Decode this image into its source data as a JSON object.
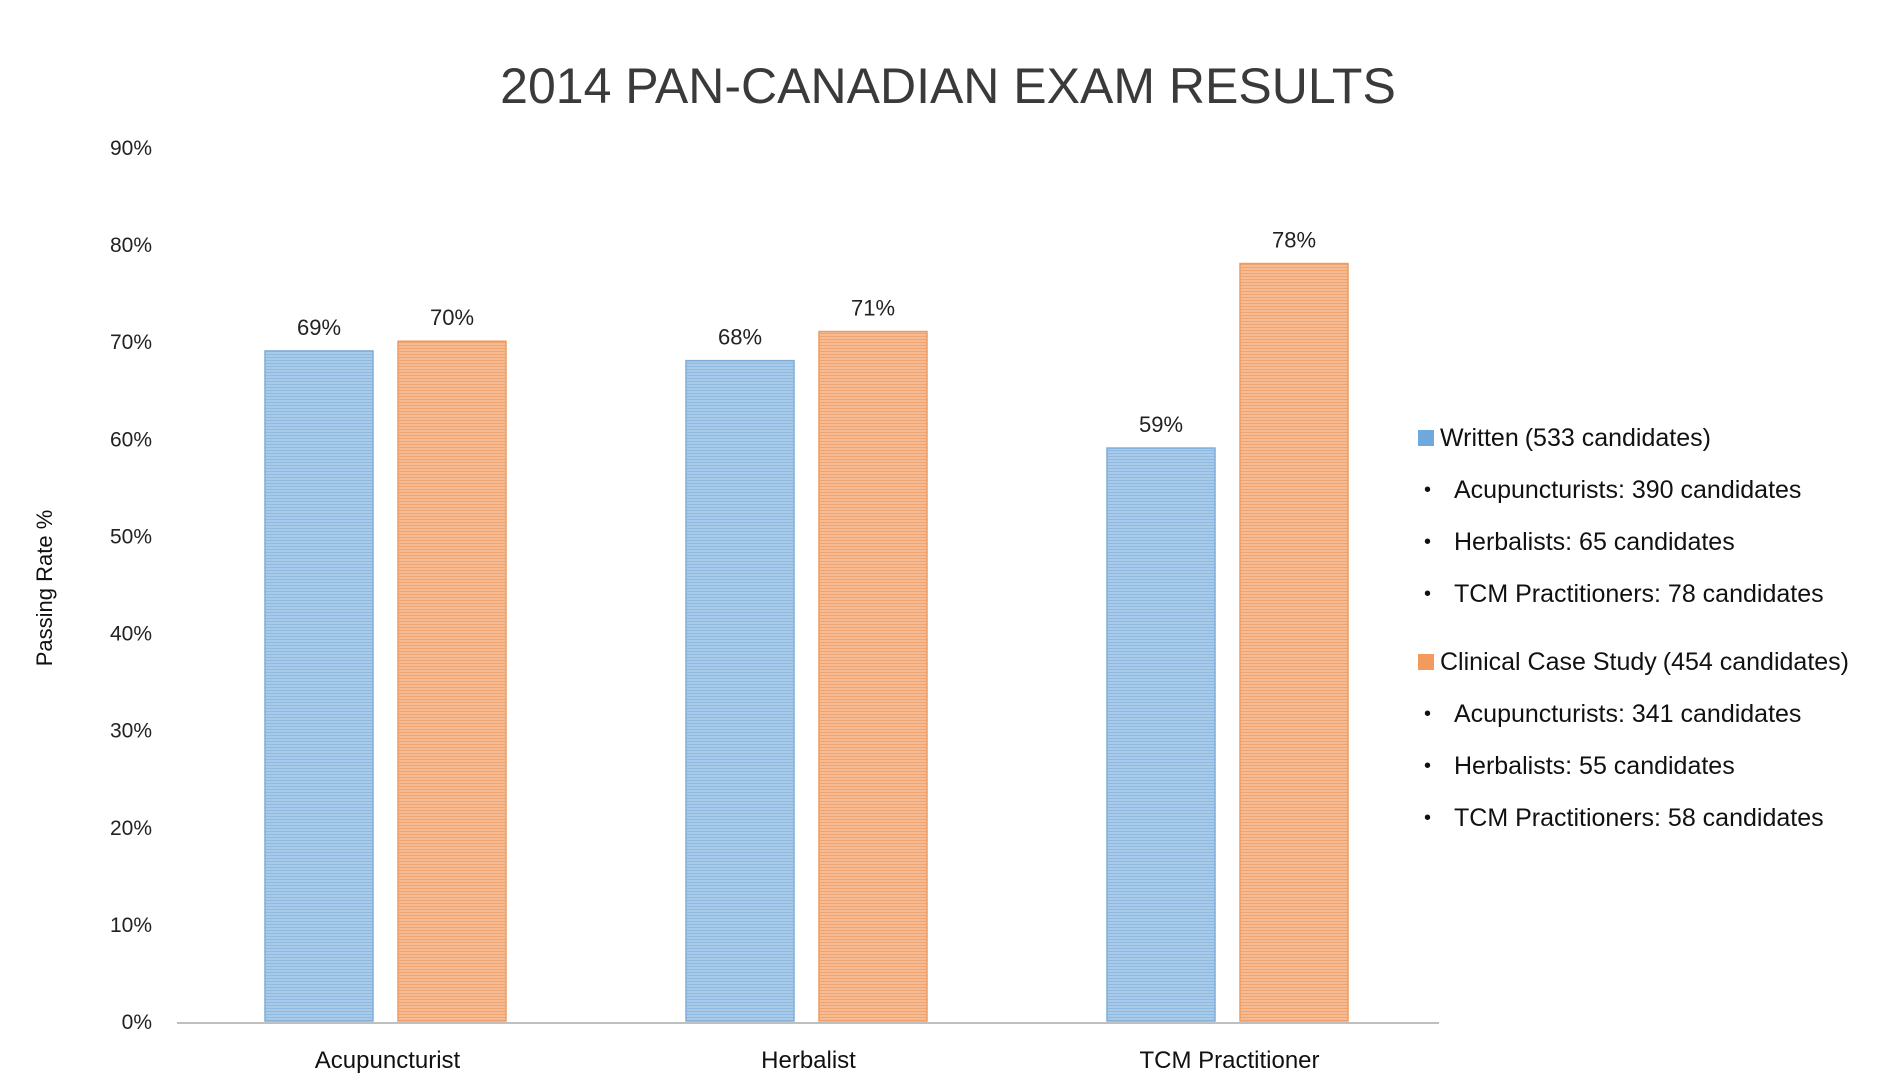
{
  "chart_data": {
    "type": "bar",
    "title": "2014 PAN-CANADIAN EXAM RESULTS",
    "ylabel": "Passing Rate %",
    "xlabel": "",
    "categories": [
      "Acupuncturist",
      "Herbalist",
      "TCM Practitioner"
    ],
    "ylim": [
      0,
      90
    ],
    "yticks": [
      0,
      10,
      20,
      30,
      40,
      50,
      60,
      70,
      80,
      90
    ],
    "ytick_labels": [
      "0%",
      "10%",
      "20%",
      "30%",
      "40%",
      "50%",
      "60%",
      "70%",
      "80%",
      "90%"
    ],
    "grid": false,
    "legend_position": "right",
    "series": [
      {
        "name": "Written",
        "values": [
          69,
          68,
          59
        ],
        "labels": [
          "69%",
          "68%",
          "59%"
        ],
        "color": "#9dc3e6",
        "edge_color": "#7fadd8"
      },
      {
        "name": "Clinical Case Study",
        "values": [
          70,
          71,
          78
        ],
        "labels": [
          "70%",
          "71%",
          "78%"
        ],
        "color": "#f4b183",
        "edge_color": "#ee9b62"
      }
    ]
  },
  "legend": [
    {
      "name": "Written",
      "note": "(533 candidates)",
      "color": "#6fa8dc",
      "items": [
        "Acupuncturists: 390 candidates",
        "Herbalists: 65 candidates",
        "TCM Practitioners: 78 candidates"
      ]
    },
    {
      "name": "Clinical Case Study",
      "note": "(454 candidates)",
      "color": "#f29b5c",
      "items": [
        "Acupuncturists: 341 candidates",
        "Herbalists: 55 candidates",
        "TCM Practitioners: 58 candidates"
      ]
    }
  ],
  "bullet_glyph": "•"
}
